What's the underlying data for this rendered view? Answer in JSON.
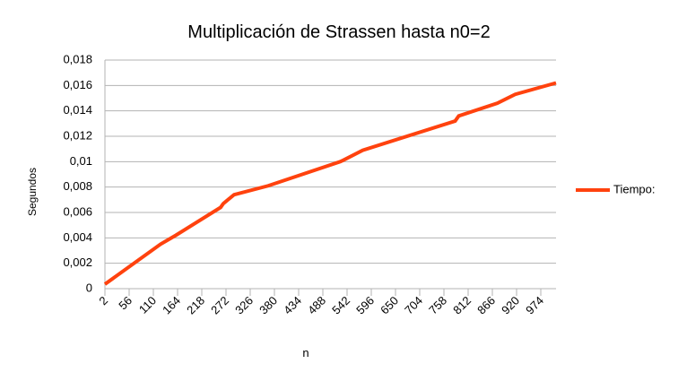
{
  "chart_data": {
    "type": "line",
    "title": "Multiplicación de Strassen hasta n0=2",
    "x_label": "n",
    "y_label": "Segundos",
    "x": [
      2,
      126,
      160,
      260,
      266,
      290,
      366,
      527,
      577,
      783,
      791,
      877,
      917,
      1008
    ],
    "series": [
      {
        "name": "Tiempo:",
        "color": "#ff420e",
        "values": [
          0.00035,
          0.0035,
          0.0042,
          0.0064,
          0.0067,
          0.0074,
          0.0081,
          0.01,
          0.0109,
          0.0132,
          0.0136,
          0.0146,
          0.0153,
          0.0162
        ]
      }
    ],
    "xlim": [
      2,
      1008
    ],
    "xticks": [
      2,
      56,
      110,
      164,
      218,
      272,
      326,
      380,
      434,
      488,
      542,
      596,
      650,
      704,
      758,
      812,
      866,
      920,
      974
    ],
    "ylim": [
      0,
      0.018
    ],
    "yticks": [
      0,
      {
        "value": 0.002,
        "label": "0,002"
      },
      {
        "value": 0.004,
        "label": "0,004"
      },
      {
        "value": 0.006,
        "label": "0,006"
      },
      {
        "value": 0.008,
        "label": "0,008"
      },
      {
        "value": 0.01,
        "label": "0,01"
      },
      {
        "value": 0.012,
        "label": "0,012"
      },
      {
        "value": 0.014,
        "label": "0,014"
      },
      {
        "value": 0.016,
        "label": "0,016"
      },
      {
        "value": 0.018,
        "label": "0,018"
      }
    ],
    "grid": true,
    "legend": "right"
  }
}
